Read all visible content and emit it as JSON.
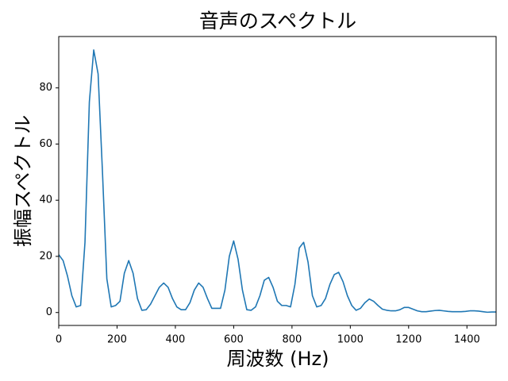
{
  "chart_data": {
    "type": "line",
    "title": "音声のスペクトル",
    "x_label": "周波数 (Hz)",
    "y_label": "振幅スペクトル",
    "color": "#1f77b4",
    "x": [
      0,
      15,
      30,
      45,
      60,
      75,
      90,
      105,
      120,
      135,
      150,
      165,
      180,
      195,
      210,
      225,
      240,
      255,
      270,
      285,
      300,
      315,
      330,
      345,
      360,
      375,
      390,
      405,
      420,
      435,
      450,
      465,
      480,
      495,
      510,
      525,
      540,
      555,
      570,
      585,
      600,
      615,
      630,
      645,
      660,
      675,
      690,
      705,
      720,
      735,
      750,
      765,
      780,
      795,
      810,
      825,
      840,
      855,
      870,
      885,
      900,
      915,
      930,
      945,
      960,
      975,
      990,
      1005,
      1020,
      1035,
      1050,
      1065,
      1080,
      1095,
      1110,
      1125,
      1140,
      1155,
      1170,
      1185,
      1200,
      1215,
      1230,
      1245,
      1260,
      1275,
      1290,
      1305,
      1320,
      1335,
      1350,
      1365,
      1380,
      1395,
      1410,
      1425,
      1440,
      1455,
      1470,
      1485,
      1500
    ],
    "values": [
      20.6,
      18.5,
      13,
      6,
      2,
      2.5,
      25,
      75,
      93.5,
      85,
      50,
      12,
      2,
      2.5,
      4,
      14,
      18.5,
      14,
      5,
      0.8,
      1,
      3,
      6,
      9,
      10.5,
      9,
      5,
      2,
      1,
      1,
      3.5,
      8,
      10.5,
      9,
      5,
      1.5,
      1.5,
      1.5,
      8,
      20,
      25.5,
      19,
      8,
      1,
      0.8,
      2,
      6,
      11.5,
      12.5,
      9,
      4,
      2.5,
      2.5,
      2,
      10,
      23,
      25,
      18,
      6,
      2,
      2.5,
      5,
      10,
      13.5,
      14.3,
      11,
      6,
      2.5,
      0.8,
      1.5,
      3.5,
      4.8,
      4,
      2.5,
      1.2,
      0.8,
      0.6,
      0.6,
      1,
      1.8,
      1.8,
      1.2,
      0.6,
      0.3,
      0.3,
      0.5,
      0.7,
      0.8,
      0.6,
      0.4,
      0.3,
      0.3,
      0.3,
      0.4,
      0.6,
      0.6,
      0.5,
      0.3,
      0.1,
      0.2,
      0.2
    ],
    "xlim": [
      0,
      1500
    ],
    "ylim": [
      -4.6,
      98.3
    ],
    "xticks": [
      0,
      200,
      400,
      600,
      800,
      1000,
      1200,
      1400
    ],
    "yticks": [
      0,
      20,
      40,
      60,
      80
    ]
  }
}
